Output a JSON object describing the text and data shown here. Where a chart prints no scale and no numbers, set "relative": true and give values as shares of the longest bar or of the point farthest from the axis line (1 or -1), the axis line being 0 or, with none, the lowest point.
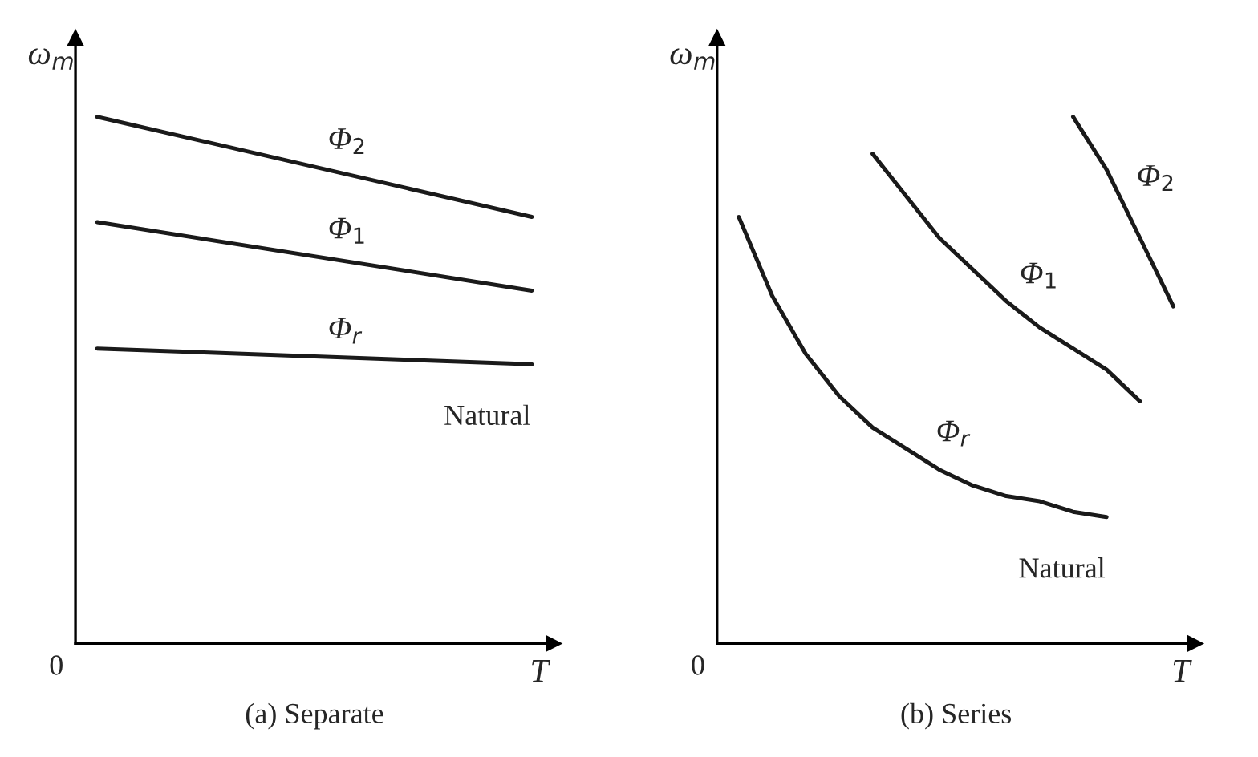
{
  "chart_data": [
    {
      "type": "line",
      "relative": true,
      "title": "(a) Separate",
      "xlabel": "T",
      "ylabel": "ω$_{m}$",
      "categories": [
        null,
        null
      ],
      "series": [
        {
          "name": "Φ$_{2}$",
          "color": "#1a1a1a",
          "values": [
            1.0,
            0.81
          ]
        },
        {
          "name": "Φ$_{1}$",
          "color": "#1a1a1a",
          "values": [
            0.8,
            0.67
          ]
        },
        {
          "name": "Φ$_{r}$",
          "color": "#1a1a1a",
          "values": [
            0.56,
            0.53
          ]
        }
      ],
      "annotations": [
        "0",
        "Natural"
      ]
    },
    {
      "type": "line",
      "relative": true,
      "title": "(b) Series",
      "xlabel": "T",
      "ylabel": "ω$_{m}$",
      "categories": [
        null,
        null,
        null,
        null,
        null,
        null,
        null,
        null,
        null,
        null,
        null,
        null,
        null,
        null
      ],
      "series": [
        {
          "name": "Φ$_{r}$",
          "color": "#1a1a1a",
          "values": [
            0.81,
            0.66,
            0.55,
            0.47,
            0.41,
            0.37,
            0.33,
            0.3,
            0.28,
            0.27,
            0.25,
            0.24,
            null,
            null
          ]
        },
        {
          "name": "Φ$_{1}$",
          "color": "#1a1a1a",
          "values": [
            null,
            null,
            null,
            null,
            0.93,
            0.85,
            0.77,
            0.71,
            0.65,
            0.6,
            0.56,
            0.52,
            0.46,
            null
          ]
        },
        {
          "name": "Φ$_{2}$",
          "color": "#1a1a1a",
          "values": [
            null,
            null,
            null,
            null,
            null,
            null,
            null,
            null,
            null,
            null,
            1.0,
            0.9,
            0.77,
            0.64
          ]
        }
      ],
      "annotations": [
        "0",
        "Natural"
      ]
    }
  ]
}
